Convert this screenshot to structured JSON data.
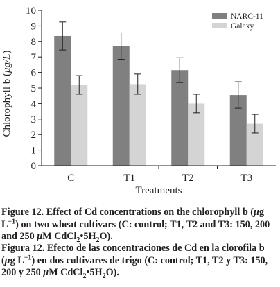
{
  "chart_data": {
    "type": "bar",
    "categories": [
      "C",
      "T1",
      "T2",
      "T3"
    ],
    "series": [
      {
        "name": "NARC-11",
        "values": [
          8.35,
          7.7,
          6.15,
          4.55
        ],
        "errors": [
          0.9,
          0.85,
          0.8,
          0.85
        ],
        "color": "#808080"
      },
      {
        "name": "Galaxy",
        "values": [
          5.2,
          5.25,
          4.0,
          2.7
        ],
        "errors": [
          0.6,
          0.65,
          0.6,
          0.6
        ],
        "color": "#d4d4d4"
      }
    ],
    "ylim": [
      0,
      10
    ],
    "yticks": [
      "0",
      "1",
      "2",
      "3",
      "4",
      "5",
      "6",
      "7",
      "8",
      "9",
      "10"
    ],
    "ylabel_prefix": "Chlorophyll b (",
    "ylabel_unit": "μg/L",
    "ylabel_suffix": ")",
    "xlabel": "Treatments",
    "legend_position": "top-right",
    "grid": false
  },
  "captions": {
    "english": {
      "label": "Figure 12.",
      "text1": " Effect of Cd concentrations on the chlorophyll b (",
      "mu1": "μ",
      "text2": "g L",
      "exp1": "−1",
      "text3": ") on two wheat cultivars (C: control; T1, T2 and T3: 150, 200 and 250 ",
      "mu2": "μ",
      "text4": "M CdCl",
      "sub1": "2",
      "text5": "•5H",
      "sub2": "2",
      "text6": "O)."
    },
    "spanish": {
      "label": "Figura 12.",
      "text1": " Efecto de las concentraciones de Cd en la clorofila b (",
      "mu1": "μ",
      "text2": "g L",
      "exp1": "−1",
      "text3": ") en dos cultivares de trigo (C: control; T1, T2 y T3: 150, 200 y 250 ",
      "mu2": "μ",
      "text4": "M CdCl",
      "sub1": "2",
      "text5": "•5H",
      "sub2": "2",
      "text6": "O)."
    }
  }
}
